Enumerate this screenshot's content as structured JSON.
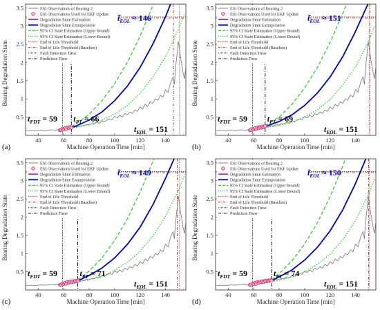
{
  "colors": {
    "esi": "#808080",
    "ekf_marker": "#c0145a",
    "ekf_fill": "#f2b8d0",
    "estimation": "#a000a0",
    "extrapolation": "#0000b4",
    "ci_upper": "#33cc33",
    "ci_lower": "#33cc33",
    "eol_threshold": "#cc2222",
    "eol_baseline": "#8b2a2a",
    "fdt": "#000000",
    "pt": "#000000",
    "annotation_blue": "#0000c8"
  },
  "chart_data": [
    {
      "type": "line",
      "panel_label": "(a)",
      "xlabel": "Machine Operation Time [min]",
      "ylabel": "Bearing Degradation State",
      "xlim": [
        30,
        156
      ],
      "ylim": [
        0,
        3.6
      ],
      "xticks": [
        40,
        60,
        80,
        100,
        120,
        140
      ],
      "yticks": [
        0.5,
        1,
        1.5,
        2,
        2.5,
        3,
        3.5
      ],
      "eol_threshold": 3.25,
      "fdt": 59,
      "pt": 66,
      "eol_actual": 151,
      "eol_est": 146,
      "pred_eol_label": "t̃_EOL ≈ 146",
      "fdt_label": "t_FDT = 59",
      "pt_label": "t_PT = 66",
      "eol_label": "t_EOL = 151",
      "legend": [
        "ESI Observations of Bearing 2",
        "ESI Observations Used for EKF Update",
        "Degradation State Estimation",
        "Degradation State Extrapolation",
        "95% CI State Estimation (Upper Bound)",
        "95% CI State Estimation (Lower Bound)",
        "End of Life Threshold",
        "End of Life Threshold (Baseline)",
        "Fault Detection Time",
        "Prediction Time"
      ],
      "ekf_obs": [
        [
          57,
          0.14
        ],
        [
          58,
          0.15
        ],
        [
          59,
          0.18
        ],
        [
          60,
          0.16
        ],
        [
          61,
          0.2
        ],
        [
          62,
          0.17
        ],
        [
          63,
          0.22
        ],
        [
          64,
          0.2
        ],
        [
          65,
          0.23
        ],
        [
          66,
          0.21
        ]
      ],
      "upper_ci": [
        [
          66,
          0.25
        ],
        [
          70,
          0.32
        ],
        [
          80,
          0.58
        ],
        [
          90,
          0.95
        ],
        [
          100,
          1.42
        ],
        [
          110,
          2.0
        ],
        [
          120,
          2.72
        ],
        [
          130,
          3.55
        ],
        [
          136,
          4.1
        ]
      ],
      "lower_ci": [
        [
          66,
          0.2
        ],
        [
          70,
          0.22
        ],
        [
          80,
          0.3
        ],
        [
          90,
          0.42
        ],
        [
          100,
          0.58
        ],
        [
          110,
          0.82
        ],
        [
          120,
          1.15
        ],
        [
          130,
          1.6
        ],
        [
          140,
          2.15
        ],
        [
          150,
          2.9
        ],
        [
          155,
          3.32
        ]
      ],
      "extrapolation": [
        [
          66,
          0.22
        ],
        [
          70,
          0.26
        ],
        [
          80,
          0.42
        ],
        [
          90,
          0.64
        ],
        [
          100,
          0.95
        ],
        [
          110,
          1.35
        ],
        [
          120,
          1.86
        ],
        [
          130,
          2.5
        ],
        [
          140,
          3.25
        ],
        [
          146,
          3.78
        ]
      ]
    },
    {
      "type": "line",
      "panel_label": "(b)",
      "xlabel": "Machine Operation Time [min]",
      "ylabel": "Bearing Degradation State",
      "xlim": [
        30,
        156
      ],
      "ylim": [
        0,
        3.6
      ],
      "xticks": [
        40,
        60,
        80,
        100,
        120,
        140
      ],
      "yticks": [
        0.5,
        1,
        1.5,
        2,
        2.5,
        3,
        3.5
      ],
      "eol_threshold": 3.25,
      "fdt": 59,
      "pt": 69,
      "eol_actual": 151,
      "eol_est": 151,
      "pred_eol_label": "t̃_EOL ≈ 151",
      "fdt_label": "t_FDT = 59",
      "pt_label": "t_PT = 69",
      "eol_label": "t_EOL = 151",
      "legend": [
        "ESI Observations of Bearing 2",
        "ESI Observations Used for EKF Update",
        "Degradation State Estimation",
        "Degradation State Extrapolation",
        "95% CI State Estimation (Upper Bound)",
        "95% CI State Estimation (Lower Bound)",
        "End of Life Threshold",
        "End of Life Threshold (Baseline)",
        "Fault Detection Time",
        "Prediction Time"
      ],
      "ekf_obs": [
        [
          57,
          0.14
        ],
        [
          58,
          0.15
        ],
        [
          59,
          0.18
        ],
        [
          60,
          0.16
        ],
        [
          61,
          0.2
        ],
        [
          62,
          0.17
        ],
        [
          63,
          0.22
        ],
        [
          64,
          0.2
        ],
        [
          65,
          0.23
        ],
        [
          66,
          0.21
        ],
        [
          67,
          0.24
        ],
        [
          68,
          0.22
        ],
        [
          69,
          0.25
        ]
      ],
      "upper_ci": [
        [
          69,
          0.27
        ],
        [
          80,
          0.5
        ],
        [
          90,
          0.85
        ],
        [
          100,
          1.3
        ],
        [
          110,
          1.86
        ],
        [
          120,
          2.55
        ],
        [
          130,
          3.35
        ],
        [
          138,
          4.05
        ]
      ],
      "lower_ci": [
        [
          69,
          0.21
        ],
        [
          80,
          0.27
        ],
        [
          90,
          0.36
        ],
        [
          100,
          0.5
        ],
        [
          110,
          0.7
        ],
        [
          120,
          0.98
        ],
        [
          130,
          1.38
        ],
        [
          140,
          1.88
        ],
        [
          150,
          2.55
        ],
        [
          155,
          3.0
        ]
      ],
      "extrapolation": [
        [
          69,
          0.24
        ],
        [
          80,
          0.38
        ],
        [
          90,
          0.56
        ],
        [
          100,
          0.82
        ],
        [
          110,
          1.16
        ],
        [
          120,
          1.6
        ],
        [
          130,
          2.16
        ],
        [
          140,
          2.85
        ],
        [
          150,
          3.62
        ],
        [
          152,
          3.8
        ]
      ]
    },
    {
      "type": "line",
      "panel_label": "(c)",
      "xlabel": "Machine Operation Time [min]",
      "ylabel": "Bearing Degradation State",
      "xlim": [
        30,
        156
      ],
      "ylim": [
        0,
        3.6
      ],
      "xticks": [
        40,
        60,
        80,
        100,
        120,
        140
      ],
      "yticks": [
        0.5,
        1,
        1.5,
        2,
        2.5,
        3,
        3.5
      ],
      "eol_threshold": 3.25,
      "fdt": 59,
      "pt": 71,
      "eol_actual": 151,
      "eol_est": 149,
      "pred_eol_label": "t̃_EOL ≈ 149",
      "fdt_label": "t_FDT = 59",
      "pt_label": "t_PT = 71",
      "eol_label": "t_EOL = 151",
      "legend": [
        "ESI Observations of Bearing 2",
        "ESI Observations Used for EKF Update",
        "Degradation State Estimation",
        "Degradation State Extrapolation",
        "95% CI State Estimation (Upper Bound)",
        "95% CI State Estimation (Lower Bound)",
        "End of Life Threshold",
        "End of Life Threshold (Baseline)",
        "Fault Detection Time",
        "Prediction Time"
      ],
      "ekf_obs": [
        [
          57,
          0.14
        ],
        [
          58,
          0.15
        ],
        [
          59,
          0.18
        ],
        [
          60,
          0.16
        ],
        [
          61,
          0.2
        ],
        [
          62,
          0.17
        ],
        [
          63,
          0.22
        ],
        [
          64,
          0.2
        ],
        [
          65,
          0.23
        ],
        [
          66,
          0.21
        ],
        [
          67,
          0.24
        ],
        [
          68,
          0.22
        ],
        [
          69,
          0.25
        ],
        [
          70,
          0.24
        ],
        [
          71,
          0.26
        ]
      ],
      "upper_ci": [
        [
          71,
          0.28
        ],
        [
          80,
          0.52
        ],
        [
          90,
          0.88
        ],
        [
          100,
          1.36
        ],
        [
          110,
          1.95
        ],
        [
          120,
          2.68
        ],
        [
          130,
          3.52
        ],
        [
          137,
          4.1
        ]
      ],
      "lower_ci": [
        [
          71,
          0.22
        ],
        [
          80,
          0.28
        ],
        [
          90,
          0.38
        ],
        [
          100,
          0.54
        ],
        [
          110,
          0.76
        ],
        [
          120,
          1.06
        ],
        [
          130,
          1.48
        ],
        [
          140,
          2.02
        ],
        [
          150,
          2.72
        ],
        [
          155,
          3.15
        ]
      ],
      "extrapolation": [
        [
          71,
          0.25
        ],
        [
          80,
          0.4
        ],
        [
          90,
          0.6
        ],
        [
          100,
          0.88
        ],
        [
          110,
          1.25
        ],
        [
          120,
          1.72
        ],
        [
          130,
          2.33
        ],
        [
          140,
          3.06
        ],
        [
          149,
          3.78
        ]
      ]
    },
    {
      "type": "line",
      "panel_label": "(d)",
      "xlabel": "Machine Operation Time [min]",
      "ylabel": "Bearing Degradation State",
      "xlim": [
        30,
        156
      ],
      "ylim": [
        0,
        3.6
      ],
      "xticks": [
        40,
        60,
        80,
        100,
        120,
        140
      ],
      "yticks": [
        0.5,
        1,
        1.5,
        2,
        2.5,
        3,
        3.5
      ],
      "eol_threshold": 3.25,
      "fdt": 59,
      "pt": 74,
      "eol_actual": 151,
      "eol_est": 150,
      "pred_eol_label": "t̃_EOL ≈ 150",
      "fdt_label": "t_FDT = 59",
      "pt_label": "t_PT = 74",
      "eol_label": "t_EOL = 151",
      "legend": [
        "ESI Observations of Bearing 2",
        "ESI Observations Used for EKF Update",
        "Degradation State Estimation",
        "Degradation State Extrapolation",
        "95% CI State Estimation (Upper Bound)",
        "95% CI State Estimation (Lower Bound)",
        "End of Life Threshold",
        "End of Life Threshold (Baseline)",
        "Fault Detection Time",
        "Prediction Time"
      ],
      "ekf_obs": [
        [
          57,
          0.14
        ],
        [
          58,
          0.15
        ],
        [
          59,
          0.18
        ],
        [
          60,
          0.16
        ],
        [
          61,
          0.2
        ],
        [
          62,
          0.17
        ],
        [
          63,
          0.22
        ],
        [
          64,
          0.2
        ],
        [
          65,
          0.23
        ],
        [
          66,
          0.21
        ],
        [
          67,
          0.24
        ],
        [
          68,
          0.22
        ],
        [
          69,
          0.25
        ],
        [
          70,
          0.24
        ],
        [
          71,
          0.26
        ],
        [
          72,
          0.25
        ],
        [
          73,
          0.27
        ],
        [
          74,
          0.26
        ]
      ],
      "upper_ci": [
        [
          74,
          0.28
        ],
        [
          80,
          0.45
        ],
        [
          90,
          0.8
        ],
        [
          100,
          1.26
        ],
        [
          110,
          1.84
        ],
        [
          120,
          2.56
        ],
        [
          130,
          3.4
        ],
        [
          137,
          4.05
        ]
      ],
      "lower_ci": [
        [
          74,
          0.23
        ],
        [
          80,
          0.27
        ],
        [
          90,
          0.36
        ],
        [
          100,
          0.5
        ],
        [
          110,
          0.7
        ],
        [
          120,
          0.98
        ],
        [
          130,
          1.38
        ],
        [
          140,
          1.9
        ],
        [
          150,
          2.6
        ],
        [
          155,
          3.05
        ]
      ],
      "extrapolation": [
        [
          74,
          0.26
        ],
        [
          80,
          0.36
        ],
        [
          90,
          0.55
        ],
        [
          100,
          0.82
        ],
        [
          110,
          1.17
        ],
        [
          120,
          1.62
        ],
        [
          130,
          2.2
        ],
        [
          140,
          2.92
        ],
        [
          150,
          3.76
        ]
      ]
    }
  ],
  "esi_series": [
    [
      30,
      0.12
    ],
    [
      34,
      0.13
    ],
    [
      38,
      0.12
    ],
    [
      42,
      0.14
    ],
    [
      46,
      0.13
    ],
    [
      50,
      0.15
    ],
    [
      54,
      0.14
    ],
    [
      56,
      0.16
    ],
    [
      58,
      0.15
    ],
    [
      60,
      0.18
    ],
    [
      62,
      0.17
    ],
    [
      64,
      0.2
    ],
    [
      66,
      0.21
    ],
    [
      68,
      0.22
    ],
    [
      70,
      0.24
    ],
    [
      72,
      0.23
    ],
    [
      74,
      0.27
    ],
    [
      76,
      0.26
    ],
    [
      78,
      0.3
    ],
    [
      80,
      0.28
    ],
    [
      82,
      0.32
    ],
    [
      84,
      0.31
    ],
    [
      86,
      0.36
    ],
    [
      88,
      0.33
    ],
    [
      90,
      0.4
    ],
    [
      92,
      0.37
    ],
    [
      94,
      0.42
    ],
    [
      96,
      0.45
    ],
    [
      98,
      0.43
    ],
    [
      100,
      0.52
    ],
    [
      102,
      0.48
    ],
    [
      104,
      0.55
    ],
    [
      106,
      0.5
    ],
    [
      108,
      0.6
    ],
    [
      110,
      0.56
    ],
    [
      112,
      0.64
    ],
    [
      114,
      0.6
    ],
    [
      116,
      0.7
    ],
    [
      118,
      0.66
    ],
    [
      120,
      0.78
    ],
    [
      122,
      0.72
    ],
    [
      124,
      0.85
    ],
    [
      126,
      0.8
    ],
    [
      128,
      0.92
    ],
    [
      130,
      0.88
    ],
    [
      132,
      1.0
    ],
    [
      134,
      0.96
    ],
    [
      136,
      1.1
    ],
    [
      138,
      1.05
    ],
    [
      140,
      1.25
    ],
    [
      142,
      1.18
    ],
    [
      144,
      1.45
    ],
    [
      146,
      1.6
    ],
    [
      147,
      1.4
    ],
    [
      148,
      1.9
    ],
    [
      149,
      2.2
    ],
    [
      150,
      2.58
    ],
    [
      151,
      2.35
    ],
    [
      152,
      2.1
    ],
    [
      153,
      1.9
    ],
    [
      154,
      1.7
    ],
    [
      155,
      1.55
    ],
    [
      156,
      1.9
    ]
  ]
}
